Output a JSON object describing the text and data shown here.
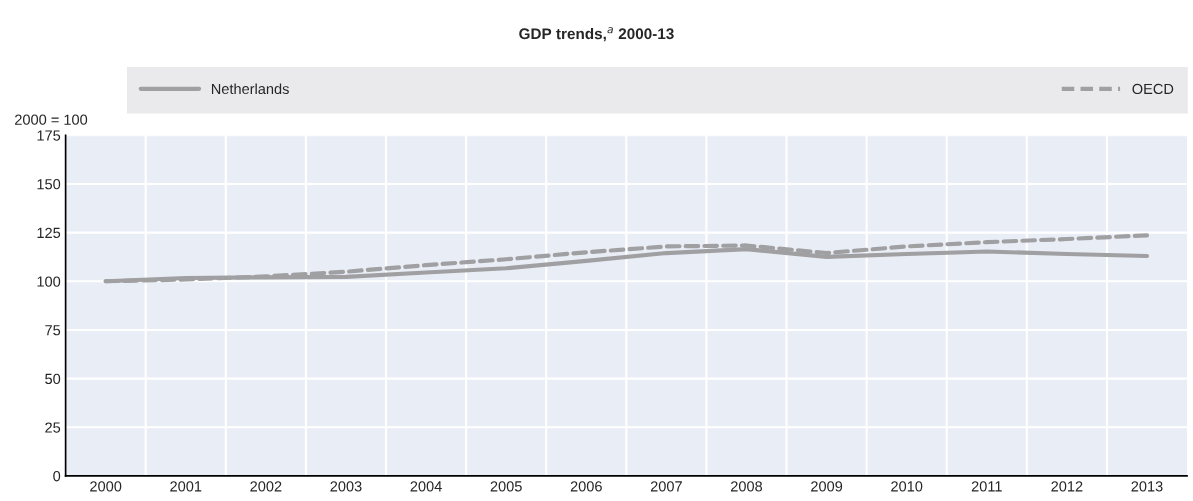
{
  "chart_data": {
    "type": "line",
    "title": "GDP trends,$^{a}$ 2000-13",
    "ylabel": "2000 = 100",
    "categories": [
      "2000",
      "2001",
      "2002",
      "2003",
      "2004",
      "2005",
      "2006",
      "2007",
      "2008",
      "2009",
      "2010",
      "2011",
      "2012",
      "2013"
    ],
    "series": [
      {
        "name": "Netherlands",
        "color": "#a0a0a2",
        "line_style": "solid",
        "values": [
          100,
          101.7,
          102,
          102.3,
          104.5,
          106.7,
          110.5,
          114.5,
          116.5,
          112.5,
          114,
          115.3,
          114,
          113
        ]
      },
      {
        "name": "OECD",
        "color": "#a0a0a2",
        "line_style": "dashed",
        "values": [
          100,
          100.9,
          102.5,
          104.9,
          108.3,
          111.3,
          114.9,
          117.9,
          118.4,
          114.5,
          117.9,
          120.1,
          121.7,
          123.6
        ]
      }
    ],
    "ylim": [
      0,
      175
    ],
    "yticks": [
      0,
      25,
      50,
      75,
      100,
      125,
      150,
      175
    ],
    "grid": true,
    "legend": "top",
    "marker": "none"
  }
}
